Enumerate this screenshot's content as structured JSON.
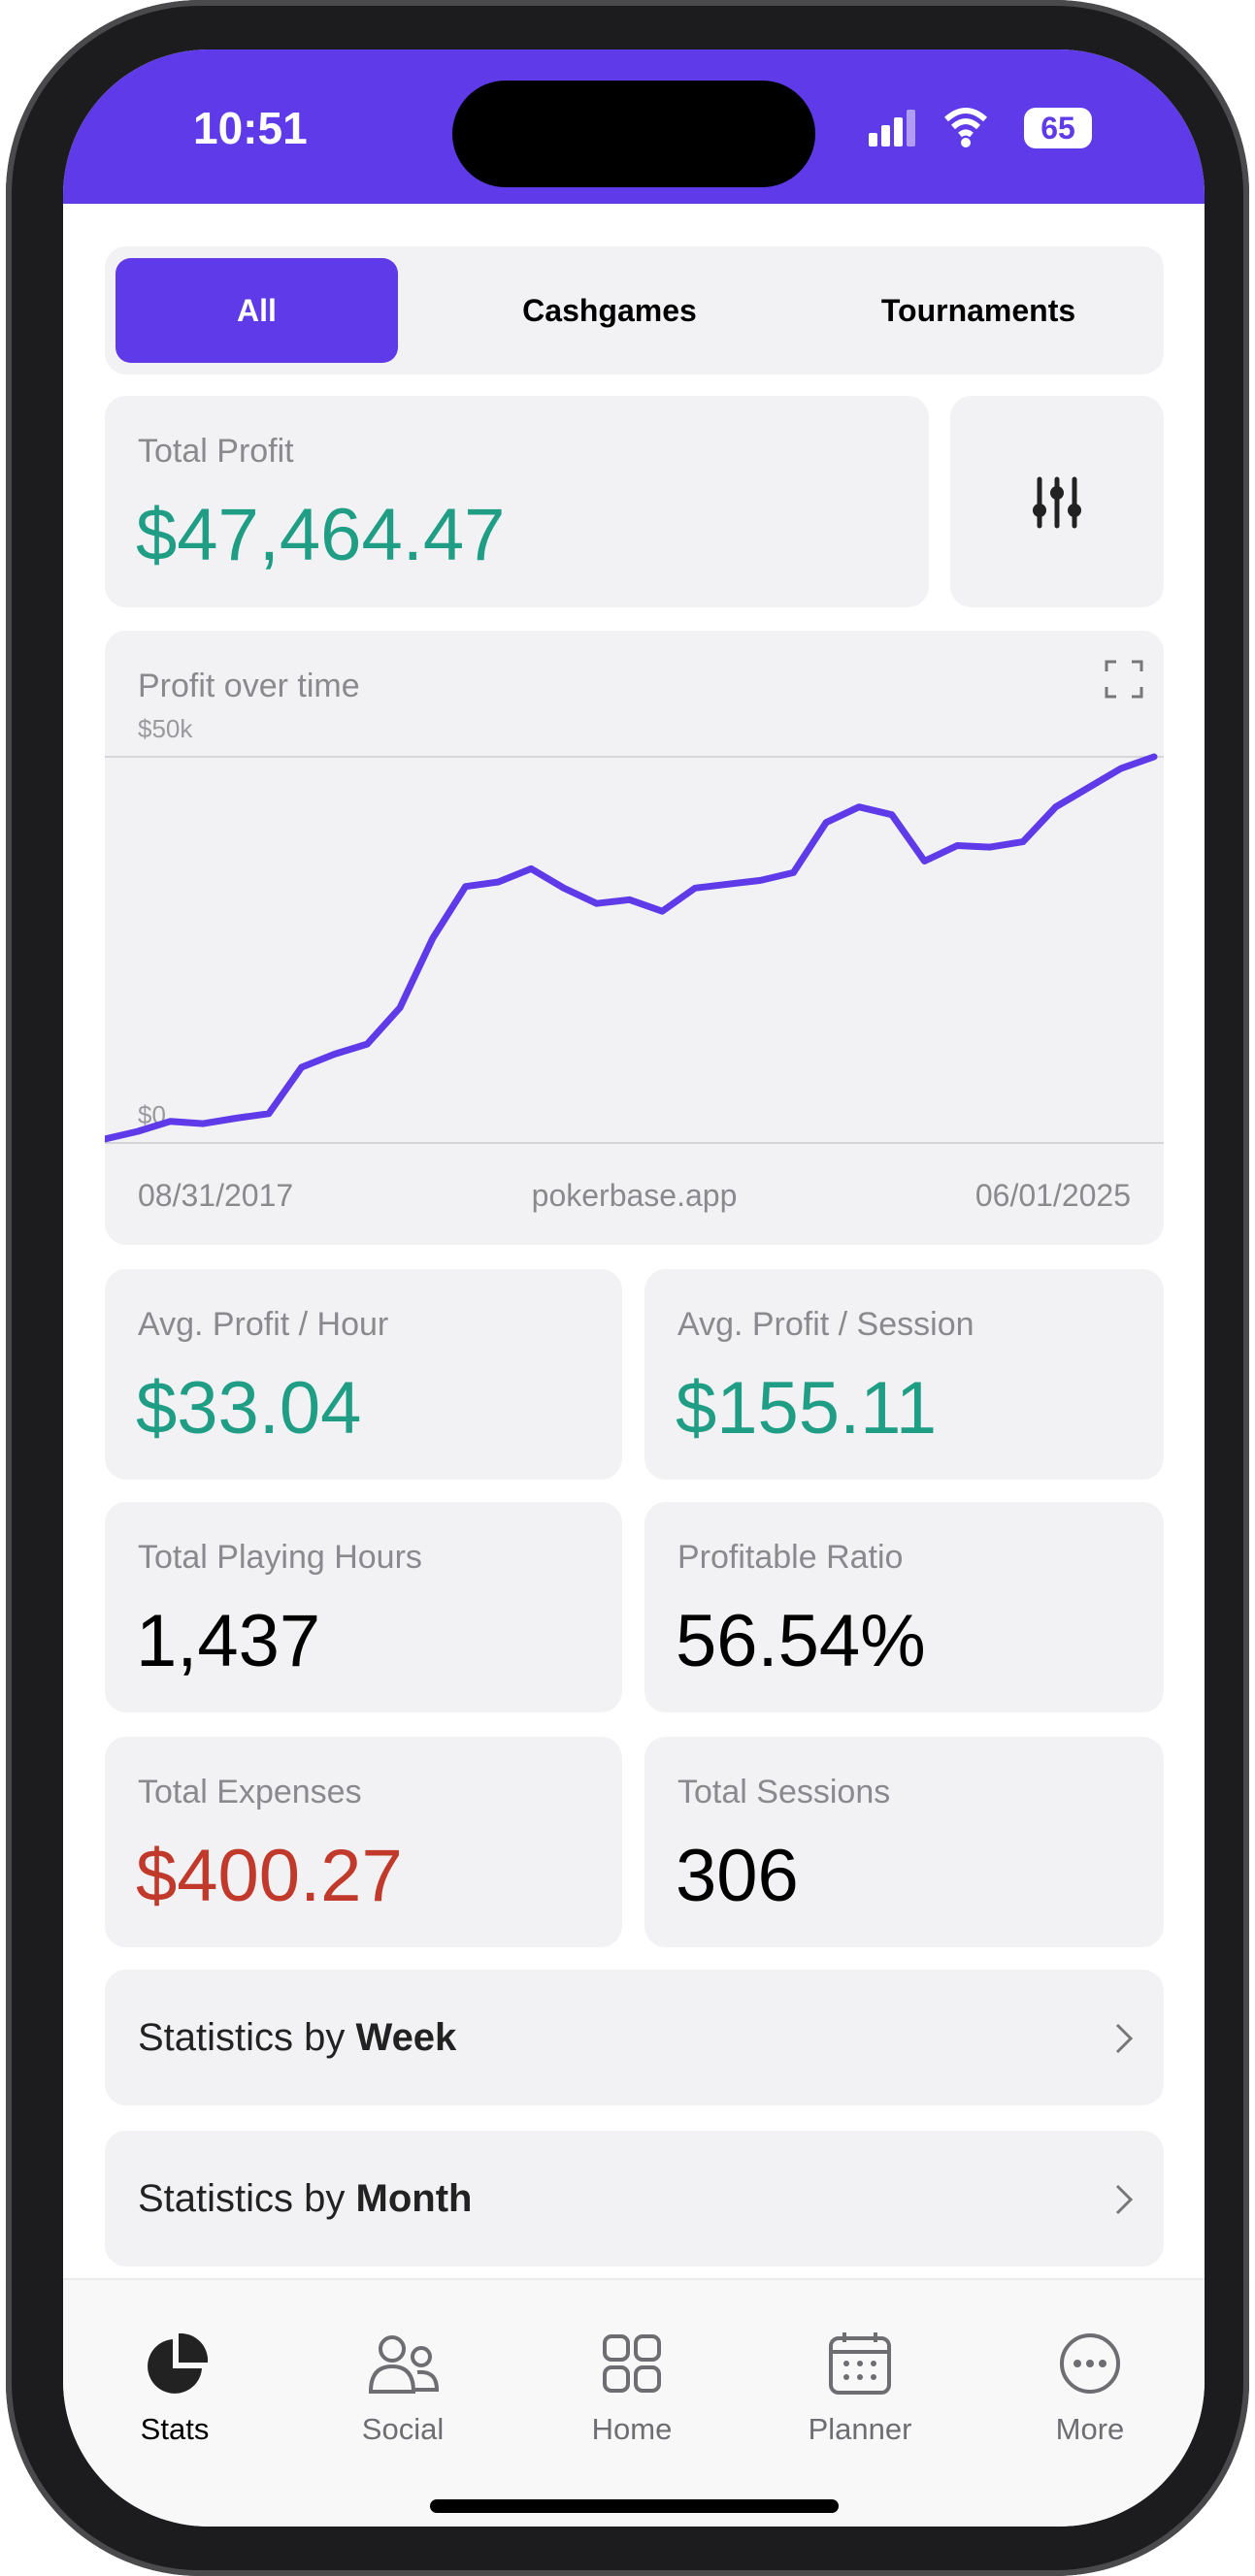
{
  "status_bar": {
    "time": "10:51",
    "battery": "65"
  },
  "tabs": [
    "All",
    "Cashgames",
    "Tournaments"
  ],
  "total_profit": {
    "label": "Total Profit",
    "value": "$47,464.47",
    "color": "#1f9e85"
  },
  "profit_chart": {
    "type": "line",
    "title": "Profit over time",
    "color": "#5e3ae8",
    "values": [
      500,
      1500,
      2800,
      2500,
      3200,
      3800,
      9800,
      11500,
      12800,
      17500,
      26500,
      33200,
      33800,
      35500,
      33000,
      31000,
      31500,
      30000,
      33000,
      33500,
      34000,
      35000,
      41500,
      43500,
      42500,
      36500,
      38500,
      38300,
      39000,
      43500,
      46000,
      48500,
      50000
    ],
    "ylim": [
      0,
      50000
    ],
    "yticks": [
      {
        "value": 0,
        "label": "$0"
      },
      {
        "value": 50000,
        "label": "$50k"
      }
    ],
    "start_label": "08/31/2017",
    "source": "pokerbase.app",
    "end_label": "06/01/2025"
  },
  "stats": [
    {
      "label": "Avg. Profit / Hour",
      "value": "$33.04",
      "color": "#1f9e85"
    },
    {
      "label": "Avg. Profit / Session",
      "value": "$155.11",
      "color": "#1f9e85"
    },
    {
      "label": "Total Playing Hours",
      "value": "1,437",
      "color": "#000000"
    },
    {
      "label": "Profitable Ratio",
      "value": "56.54%",
      "color": "#000000"
    },
    {
      "label": "Total Expenses",
      "value": "$400.27",
      "color": "#c0392b"
    },
    {
      "label": "Total Sessions",
      "value": "306",
      "color": "#000000"
    }
  ],
  "links": [
    {
      "prefix": "Statistics by",
      "bold": "Week"
    },
    {
      "prefix": "Statistics by",
      "bold": "Month"
    }
  ],
  "nav": [
    "Stats",
    "Social",
    "Home",
    "Planner",
    "More"
  ]
}
